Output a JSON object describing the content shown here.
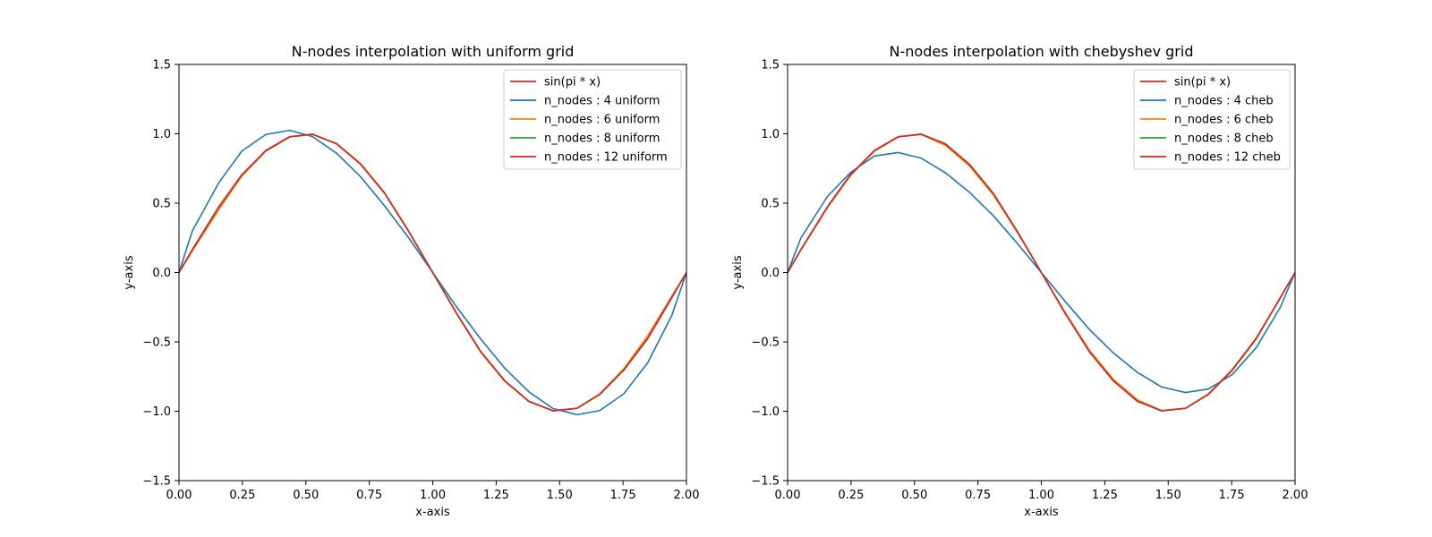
{
  "chart_data": [
    {
      "type": "line",
      "title": "N-nodes interpolation with uniform grid",
      "xlabel": "x-axis",
      "ylabel": "y-axis",
      "xlim": [
        0,
        2
      ],
      "ylim": [
        -1.5,
        1.5
      ],
      "xticks": [
        "0.00",
        "0.25",
        "0.50",
        "0.75",
        "1.00",
        "1.25",
        "1.50",
        "1.75",
        "2.00"
      ],
      "yticks": [
        "1.5",
        "1.0",
        "0.5",
        "0.0",
        "−0.5",
        "−1.0",
        "−1.5"
      ],
      "grid": false,
      "legend_position": "top-right",
      "x": [
        0,
        0.0526,
        0.1579,
        0.2474,
        0.3421,
        0.4368,
        0.5263,
        0.6211,
        0.7158,
        0.8105,
        0.9053,
        1.0,
        1.0947,
        1.1895,
        1.2842,
        1.3789,
        1.4737,
        1.5684,
        1.6579,
        1.7526,
        1.8474,
        1.9421,
        2.0
      ],
      "series": [
        {
          "name": "sin(pi * x)",
          "color": "#d62728",
          "values": [
            0,
            0.165,
            0.476,
            0.704,
            0.879,
            0.979,
            0.997,
            0.928,
            0.781,
            0.571,
            0.296,
            0.0,
            -0.296,
            -0.571,
            -0.781,
            -0.928,
            -0.997,
            -0.979,
            -0.879,
            -0.704,
            -0.476,
            -0.181,
            0.0
          ]
        },
        {
          "name": "n_nodes : 4 uniform",
          "color": "#1f77b4",
          "values": [
            0,
            0.3,
            0.65,
            0.875,
            0.995,
            1.025,
            0.98,
            0.86,
            0.69,
            0.48,
            0.25,
            0.0,
            -0.25,
            -0.48,
            -0.69,
            -0.86,
            -0.98,
            -1.025,
            -0.995,
            -0.875,
            -0.65,
            -0.31,
            0.0
          ]
        },
        {
          "name": "n_nodes : 6 uniform",
          "color": "#ff7f0e",
          "values": [
            0,
            0.155,
            0.455,
            0.695,
            0.875,
            0.978,
            0.995,
            0.93,
            0.785,
            0.575,
            0.3,
            0.0,
            -0.3,
            -0.575,
            -0.785,
            -0.93,
            -0.995,
            -0.978,
            -0.875,
            -0.695,
            -0.455,
            -0.17,
            0.0
          ]
        },
        {
          "name": "n_nodes : 8 uniform",
          "color": "#2ca02c",
          "values": [
            0,
            0.165,
            0.474,
            0.703,
            0.879,
            0.979,
            0.997,
            0.928,
            0.781,
            0.571,
            0.296,
            0.0,
            -0.296,
            -0.571,
            -0.781,
            -0.928,
            -0.997,
            -0.979,
            -0.879,
            -0.704,
            -0.474,
            -0.18,
            0.0
          ]
        },
        {
          "name": "n_nodes : 12 uniform",
          "color": "#d62728",
          "values": [
            0,
            0.165,
            0.476,
            0.704,
            0.879,
            0.979,
            0.997,
            0.928,
            0.781,
            0.571,
            0.296,
            0.0,
            -0.296,
            -0.571,
            -0.781,
            -0.928,
            -0.997,
            -0.979,
            -0.879,
            -0.704,
            -0.476,
            -0.181,
            0.0
          ]
        }
      ]
    },
    {
      "type": "line",
      "title": "N-nodes interpolation with chebyshev grid",
      "xlabel": "x-axis",
      "ylabel": "y-axis",
      "xlim": [
        0,
        2
      ],
      "ylim": [
        -1.5,
        1.5
      ],
      "xticks": [
        "0.00",
        "0.25",
        "0.50",
        "0.75",
        "1.00",
        "1.25",
        "1.50",
        "1.75",
        "2.00"
      ],
      "yticks": [
        "1.5",
        "1.0",
        "0.5",
        "0.0",
        "−0.5",
        "−1.0",
        "−1.5"
      ],
      "grid": false,
      "legend_position": "top-right",
      "x": [
        0,
        0.0526,
        0.1579,
        0.2474,
        0.3421,
        0.4368,
        0.5263,
        0.6211,
        0.7158,
        0.8105,
        0.9053,
        1.0,
        1.0947,
        1.1895,
        1.2842,
        1.3789,
        1.4737,
        1.5684,
        1.6579,
        1.7526,
        1.8474,
        1.9421,
        2.0
      ],
      "series": [
        {
          "name": "sin(pi * x)",
          "color": "#d62728",
          "values": [
            0,
            0.165,
            0.476,
            0.704,
            0.879,
            0.979,
            0.997,
            0.928,
            0.781,
            0.571,
            0.296,
            0.0,
            -0.296,
            -0.571,
            -0.781,
            -0.928,
            -0.997,
            -0.979,
            -0.879,
            -0.704,
            -0.476,
            -0.181,
            0.0
          ]
        },
        {
          "name": "n_nodes : 4 cheb",
          "color": "#1f77b4",
          "values": [
            0,
            0.25,
            0.55,
            0.72,
            0.84,
            0.865,
            0.825,
            0.72,
            0.58,
            0.41,
            0.21,
            0.0,
            -0.21,
            -0.41,
            -0.58,
            -0.72,
            -0.825,
            -0.865,
            -0.84,
            -0.735,
            -0.54,
            -0.25,
            0.0
          ]
        },
        {
          "name": "n_nodes : 6 cheb",
          "color": "#ff7f0e",
          "values": [
            0,
            0.163,
            0.47,
            0.698,
            0.875,
            0.978,
            0.995,
            0.918,
            0.77,
            0.56,
            0.29,
            0.0,
            -0.29,
            -0.56,
            -0.77,
            -0.918,
            -0.995,
            -0.978,
            -0.875,
            -0.698,
            -0.47,
            -0.18,
            0.0
          ]
        },
        {
          "name": "n_nodes : 8 cheb",
          "color": "#2ca02c",
          "values": [
            0,
            0.165,
            0.475,
            0.703,
            0.879,
            0.979,
            0.997,
            0.928,
            0.781,
            0.571,
            0.296,
            0.0,
            -0.296,
            -0.571,
            -0.781,
            -0.928,
            -0.997,
            -0.979,
            -0.879,
            -0.704,
            -0.475,
            -0.181,
            0.0
          ]
        },
        {
          "name": "n_nodes : 12 cheb",
          "color": "#d62728",
          "values": [
            0,
            0.165,
            0.476,
            0.704,
            0.879,
            0.979,
            0.997,
            0.928,
            0.781,
            0.571,
            0.296,
            0.0,
            -0.296,
            -0.571,
            -0.781,
            -0.928,
            -0.997,
            -0.979,
            -0.879,
            -0.704,
            -0.476,
            -0.181,
            0.0
          ]
        }
      ]
    }
  ]
}
